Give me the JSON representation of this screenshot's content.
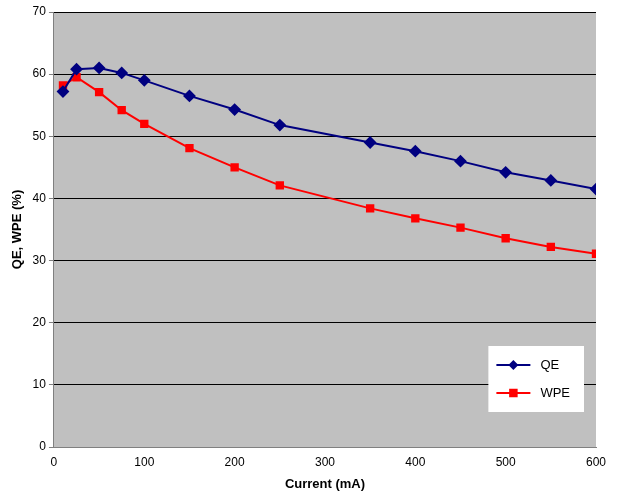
{
  "chart_data": {
    "type": "line",
    "x_label": "Current (mA)",
    "y_label": "QE, WPE (%)",
    "x": [
      10,
      25,
      50,
      75,
      100,
      150,
      200,
      250,
      350,
      400,
      450,
      500,
      550,
      600
    ],
    "series": [
      {
        "name": "QE",
        "color": "#000080",
        "marker": "diamond",
        "line_style": "solid",
        "values": [
          57.2,
          60.8,
          61.0,
          60.2,
          59.0,
          56.5,
          54.3,
          51.8,
          49.0,
          47.6,
          46.0,
          44.2,
          42.9,
          41.5
        ]
      },
      {
        "name": "WPE",
        "color": "#ff0000",
        "marker": "square",
        "line_style": "solid",
        "values": [
          58.2,
          59.5,
          57.1,
          54.2,
          52.0,
          48.1,
          45.0,
          42.1,
          38.4,
          36.8,
          35.3,
          33.6,
          32.2,
          31.1
        ]
      }
    ],
    "xlim": [
      0,
      600
    ],
    "xticks": [
      0,
      100,
      200,
      300,
      400,
      500,
      600
    ],
    "ylim": [
      0,
      70
    ],
    "yticks": [
      0,
      10,
      20,
      30,
      40,
      50,
      60,
      70
    ],
    "grid": "y",
    "legend": "lower right"
  }
}
